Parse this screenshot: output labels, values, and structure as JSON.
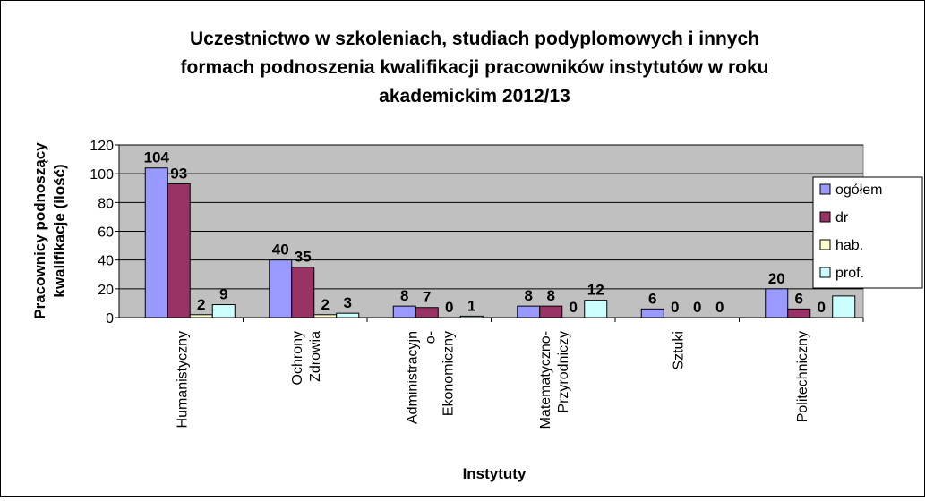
{
  "chart_data": {
    "type": "bar",
    "title": [
      "Uczestnictwo w szkoleniach, studiach podyplomowych i innych",
      "formach podnoszenia kwalifikacji pracowników instytutów w roku",
      "akademickim 2012/13"
    ],
    "y_label": [
      "Pracownicy podnoszący",
      "kwalifikacje (ilość)"
    ],
    "x_label": "Instytuty",
    "categories": [
      [
        "Humanistyczny"
      ],
      [
        "Ochrony",
        "Zdrowia"
      ],
      [
        "Administracyjn",
        "o-",
        "Ekonomiczny"
      ],
      [
        "Matematyczno-",
        "Przyrodniczy"
      ],
      [
        "Sztuki"
      ],
      [
        "Politechniczny"
      ]
    ],
    "series": [
      {
        "name": "ogółem",
        "color": "#9999ff",
        "values": [
          104,
          40,
          8,
          8,
          6,
          20
        ]
      },
      {
        "name": "dr",
        "color": "#993366",
        "values": [
          93,
          35,
          7,
          8,
          0,
          6
        ]
      },
      {
        "name": "hab.",
        "color": "#ffffcc",
        "values": [
          2,
          2,
          0,
          0,
          0,
          0
        ]
      },
      {
        "name": "prof.",
        "color": "#ccffff",
        "values": [
          9,
          3,
          1,
          12,
          0,
          15
        ],
        "value_labels": [
          "9",
          "3",
          "1",
          "12",
          "0",
          null
        ]
      }
    ],
    "ylim": [
      0,
      120
    ],
    "yticks": [
      0,
      20,
      40,
      60,
      80,
      100,
      120
    ],
    "grid": true,
    "legend": "right"
  }
}
